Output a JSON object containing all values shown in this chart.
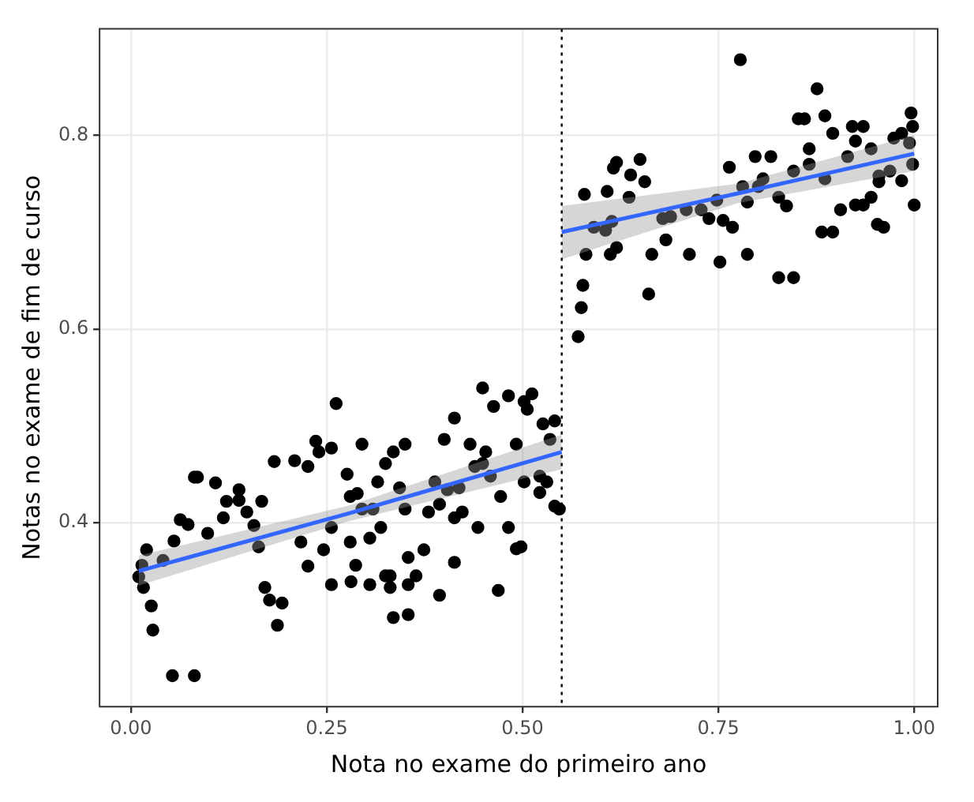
{
  "chart_data": {
    "type": "scatter",
    "xlabel": "Nota no exame do primeiro ano",
    "ylabel": "Notas no exame de fim de curso",
    "xlim": [
      -0.04,
      1.03
    ],
    "ylim": [
      0.21,
      0.91
    ],
    "xticks": [
      {
        "value": 0,
        "label": "0.00"
      },
      {
        "value": 0.25,
        "label": "0.25"
      },
      {
        "value": 0.5,
        "label": "0.50"
      },
      {
        "value": 0.75,
        "label": "0.75"
      },
      {
        "value": 1,
        "label": "1.00"
      }
    ],
    "yticks": [
      0.4,
      0.6,
      0.8
    ],
    "grid": true,
    "legend": false,
    "ref_lines": [
      {
        "axis": "x",
        "value": 0.55,
        "color": "#000000",
        "line_style": "dotted"
      }
    ],
    "series": [
      {
        "color": "#000000",
        "marker": "circle",
        "x": [
          0.01,
          0.014,
          0.02,
          0.016,
          0.028,
          0.053,
          0.081,
          0.026,
          0.041,
          0.055,
          0.063,
          0.073,
          0.098,
          0.118,
          0.122,
          0.138,
          0.081,
          0.085,
          0.108,
          0.138,
          0.148,
          0.157,
          0.167,
          0.163,
          0.171,
          0.177,
          0.187,
          0.193,
          0.183,
          0.209,
          0.226,
          0.236,
          0.24,
          0.256,
          0.262,
          0.276,
          0.28,
          0.28,
          0.287,
          0.281,
          0.295,
          0.309,
          0.315,
          0.319,
          0.325,
          0.335,
          0.343,
          0.35,
          0.295,
          0.289,
          0.256,
          0.217,
          0.246,
          0.226,
          0.305,
          0.331,
          0.331,
          0.354,
          0.364,
          0.374,
          0.354,
          0.38,
          0.388,
          0.4,
          0.404,
          0.394,
          0.413,
          0.423,
          0.439,
          0.443,
          0.449,
          0.453,
          0.459,
          0.472,
          0.482,
          0.492,
          0.498,
          0.469,
          0.413,
          0.449,
          0.482,
          0.502,
          0.506,
          0.512,
          0.526,
          0.535,
          0.541,
          0.522,
          0.531,
          0.541,
          0.547,
          0.502,
          0.522,
          0.413,
          0.433,
          0.463,
          0.492,
          0.335,
          0.394,
          0.354,
          0.419,
          0.35,
          0.305,
          0.325,
          0.256,
          0.571,
          0.575,
          0.577,
          0.579,
          0.581,
          0.591,
          0.606,
          0.612,
          0.62,
          0.614,
          0.608,
          0.616,
          0.62,
          0.636,
          0.638,
          0.65,
          0.656,
          0.665,
          0.661,
          0.679,
          0.683,
          0.689,
          0.709,
          0.713,
          0.728,
          0.738,
          0.748,
          0.756,
          0.764,
          0.752,
          0.768,
          0.778,
          0.781,
          0.787,
          0.807,
          0.801,
          0.827,
          0.837,
          0.846,
          0.852,
          0.86,
          0.866,
          0.866,
          0.876,
          0.886,
          0.896,
          0.882,
          0.896,
          0.906,
          0.915,
          0.921,
          0.925,
          0.935,
          0.945,
          0.955,
          0.969,
          0.974,
          0.984,
          0.994,
          0.996,
          0.998,
          1.0,
          0.998,
          0.935,
          0.945,
          0.953,
          0.961,
          0.984,
          0.955,
          0.846,
          0.827,
          0.787,
          0.797,
          0.817,
          0.925,
          0.886
        ],
        "values": [
          0.344,
          0.356,
          0.372,
          0.333,
          0.289,
          0.242,
          0.242,
          0.314,
          0.361,
          0.381,
          0.403,
          0.398,
          0.389,
          0.405,
          0.422,
          0.423,
          0.447,
          0.447,
          0.441,
          0.434,
          0.411,
          0.397,
          0.422,
          0.375,
          0.333,
          0.32,
          0.294,
          0.317,
          0.463,
          0.464,
          0.458,
          0.484,
          0.473,
          0.477,
          0.523,
          0.45,
          0.427,
          0.38,
          0.356,
          0.339,
          0.414,
          0.414,
          0.442,
          0.395,
          0.461,
          0.473,
          0.436,
          0.414,
          0.481,
          0.43,
          0.395,
          0.38,
          0.372,
          0.355,
          0.384,
          0.345,
          0.333,
          0.305,
          0.345,
          0.372,
          0.364,
          0.411,
          0.442,
          0.486,
          0.434,
          0.419,
          0.405,
          0.411,
          0.458,
          0.395,
          0.461,
          0.473,
          0.448,
          0.427,
          0.395,
          0.373,
          0.375,
          0.33,
          0.359,
          0.539,
          0.531,
          0.525,
          0.517,
          0.533,
          0.502,
          0.486,
          0.505,
          0.431,
          0.442,
          0.417,
          0.414,
          0.442,
          0.448,
          0.508,
          0.481,
          0.52,
          0.481,
          0.302,
          0.325,
          0.336,
          0.436,
          0.481,
          0.336,
          0.345,
          0.336,
          0.592,
          0.622,
          0.645,
          0.739,
          0.677,
          0.705,
          0.702,
          0.677,
          0.684,
          0.711,
          0.742,
          0.766,
          0.772,
          0.736,
          0.759,
          0.775,
          0.752,
          0.677,
          0.636,
          0.714,
          0.692,
          0.716,
          0.723,
          0.677,
          0.723,
          0.714,
          0.733,
          0.712,
          0.767,
          0.669,
          0.705,
          0.878,
          0.747,
          0.731,
          0.755,
          0.747,
          0.736,
          0.727,
          0.763,
          0.817,
          0.817,
          0.77,
          0.786,
          0.848,
          0.82,
          0.802,
          0.7,
          0.7,
          0.723,
          0.778,
          0.809,
          0.794,
          0.809,
          0.786,
          0.758,
          0.763,
          0.797,
          0.802,
          0.792,
          0.823,
          0.809,
          0.728,
          0.77,
          0.728,
          0.736,
          0.708,
          0.705,
          0.753,
          0.752,
          0.653,
          0.653,
          0.677,
          0.778,
          0.778,
          0.728,
          0.755
        ]
      },
      {
        "type": "line",
        "marker": "none",
        "color": "#3366ff",
        "x": [
          0.01,
          0.28,
          0.55
        ],
        "values": [
          0.35,
          0.41,
          0.473
        ],
        "lower": [
          0.335,
          0.402,
          0.455
        ],
        "upper": [
          0.366,
          0.418,
          0.491
        ]
      },
      {
        "type": "line",
        "marker": "none",
        "color": "#3366ff",
        "x": [
          0.55,
          0.775,
          1.0
        ],
        "values": [
          0.7,
          0.74,
          0.781
        ],
        "lower": [
          0.672,
          0.73,
          0.763
        ],
        "upper": [
          0.727,
          0.75,
          0.8
        ]
      }
    ]
  }
}
